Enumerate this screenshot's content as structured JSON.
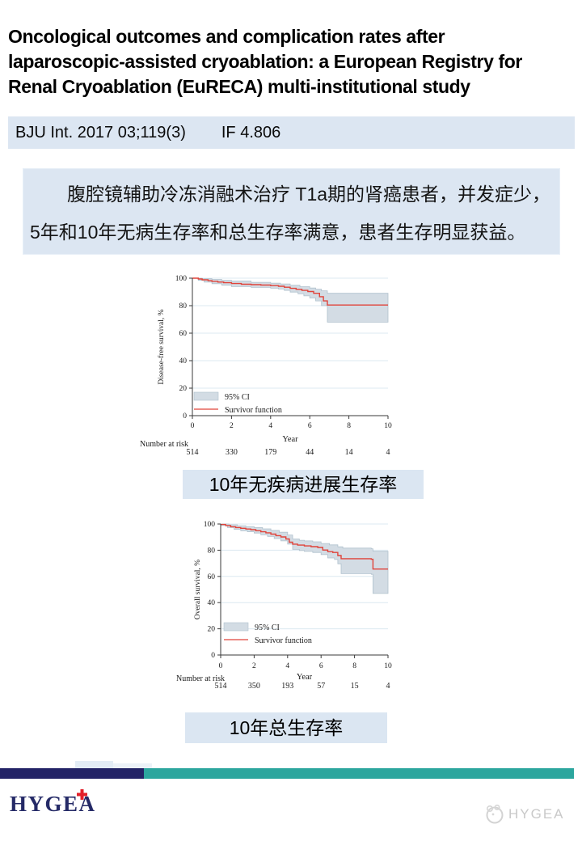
{
  "page": {
    "background": "#ffffff"
  },
  "title": {
    "lines": [
      "Oncological outcomes and complication rates after",
      "laparoscopic-assisted cryoablation: a European Registry for",
      "Renal Cryoablation (EuRECA) multi-institutional study"
    ]
  },
  "citation": {
    "text": "BJU Int. 2017 03;119(3)",
    "impact_factor": "IF 4.806",
    "bg": "#dce6f2"
  },
  "summary": {
    "lines": [
      "腹腔镜辅助冷冻消融术治疗 T1a期的肾癌患者，并发症少，",
      "5年和10年无病生存率和总生存率满意，患者生存明显获益。"
    ],
    "bg": "#dce6f2"
  },
  "chart_style": {
    "survivor_line": "#e0433a",
    "ci_fill": "#d3dce4",
    "ci_edge": "#b0c1cd",
    "grid": "#dce8f1",
    "axis": "#3a3a3a",
    "text": "#1a1a1a"
  },
  "chart_data": [
    {
      "type": "line",
      "name": "km-chart-disease-free-survival",
      "caption": "10年无疾病进展生存率",
      "ylabel": "Disease-free survival, %",
      "xlabel": "Year",
      "xlim": [
        0,
        10
      ],
      "ylim": [
        0,
        100
      ],
      "xticks": [
        0,
        2,
        4,
        6,
        8,
        10
      ],
      "yticks": [
        0,
        20,
        40,
        60,
        80,
        100
      ],
      "legend": [
        "95% CI",
        "Survivor function"
      ],
      "risk_label": "Number at risk",
      "risk_numbers": [
        514,
        330,
        179,
        44,
        14,
        4
      ],
      "survivor": [
        [
          0,
          100
        ],
        [
          0.3,
          99.4
        ],
        [
          0.5,
          98.8
        ],
        [
          0.8,
          98.2
        ],
        [
          1,
          97.7
        ],
        [
          1.3,
          97.2
        ],
        [
          1.6,
          96.7
        ],
        [
          2,
          96.1
        ],
        [
          2.5,
          95.6
        ],
        [
          3,
          95.3
        ],
        [
          3.5,
          95
        ],
        [
          4,
          94.6
        ],
        [
          4.4,
          94.1
        ],
        [
          4.7,
          93.4
        ],
        [
          5,
          92.6
        ],
        [
          5.3,
          91.9
        ],
        [
          5.6,
          91.1
        ],
        [
          5.9,
          90.3
        ],
        [
          6.2,
          89
        ],
        [
          6.5,
          86.5
        ],
        [
          6.7,
          83.5
        ],
        [
          6.9,
          80.5
        ],
        [
          10,
          80.5
        ]
      ],
      "ci_upper": [
        [
          0,
          100
        ],
        [
          0.5,
          99.6
        ],
        [
          1,
          99.1
        ],
        [
          1.5,
          98.4
        ],
        [
          2,
          97.8
        ],
        [
          3,
          97
        ],
        [
          4,
          96.4
        ],
        [
          4.5,
          95.8
        ],
        [
          5,
          94.8
        ],
        [
          5.5,
          93.8
        ],
        [
          6,
          92.8
        ],
        [
          6.3,
          92
        ],
        [
          6.6,
          90.8
        ],
        [
          6.9,
          89
        ],
        [
          10,
          89
        ]
      ],
      "ci_lower": [
        [
          0,
          100
        ],
        [
          0.3,
          98.4
        ],
        [
          0.6,
          97.2
        ],
        [
          1,
          96
        ],
        [
          1.5,
          94.9
        ],
        [
          2,
          93.9
        ],
        [
          3,
          93.3
        ],
        [
          4,
          92.7
        ],
        [
          4.4,
          92.1
        ],
        [
          4.7,
          91.1
        ],
        [
          5,
          89.9
        ],
        [
          5.4,
          88.6
        ],
        [
          5.7,
          87.1
        ],
        [
          6,
          85.6
        ],
        [
          6.3,
          83.5
        ],
        [
          6.6,
          80
        ],
        [
          6.9,
          68
        ],
        [
          10,
          68
        ]
      ]
    },
    {
      "type": "line",
      "name": "km-chart-overall-survival",
      "caption": "10年总生存率",
      "ylabel": "Overall survival, %",
      "xlabel": "Year",
      "xlim": [
        0,
        10
      ],
      "ylim": [
        0,
        100
      ],
      "xticks": [
        0,
        2,
        4,
        6,
        8,
        10
      ],
      "yticks": [
        0,
        20,
        40,
        60,
        80,
        100
      ],
      "legend": [
        "95% CI",
        "Survivor function"
      ],
      "risk_label": "Number at risk",
      "risk_numbers": [
        514,
        350,
        193,
        57,
        15,
        4
      ],
      "survivor": [
        [
          0,
          99.6
        ],
        [
          0.3,
          98.8
        ],
        [
          0.6,
          97.9
        ],
        [
          0.9,
          97.3
        ],
        [
          1.2,
          96.7
        ],
        [
          1.5,
          96.2
        ],
        [
          1.8,
          95.7
        ],
        [
          2.1,
          94.9
        ],
        [
          2.4,
          94.1
        ],
        [
          2.7,
          93.3
        ],
        [
          3,
          92.3
        ],
        [
          3.3,
          91.1
        ],
        [
          3.6,
          90.1
        ],
        [
          3.9,
          88.6
        ],
        [
          4.1,
          86.1
        ],
        [
          4.3,
          84.6
        ],
        [
          4.6,
          83.9
        ],
        [
          5,
          83.3
        ],
        [
          5.4,
          82.7
        ],
        [
          5.8,
          82.1
        ],
        [
          6.1,
          80.1
        ],
        [
          6.4,
          78.9
        ],
        [
          6.7,
          78.3
        ],
        [
          7,
          75.9
        ],
        [
          7.2,
          73.5
        ],
        [
          9,
          73.1
        ],
        [
          9.1,
          65.6
        ],
        [
          10,
          65.6
        ]
      ],
      "ci_upper": [
        [
          0,
          100
        ],
        [
          0.5,
          99.4
        ],
        [
          1,
          98.7
        ],
        [
          1.5,
          98.1
        ],
        [
          2,
          97.3
        ],
        [
          2.5,
          96.3
        ],
        [
          3,
          95.1
        ],
        [
          3.5,
          93.7
        ],
        [
          4,
          91.6
        ],
        [
          4.3,
          88.6
        ],
        [
          4.7,
          87.6
        ],
        [
          5,
          87.1
        ],
        [
          5.5,
          86.4
        ],
        [
          6,
          85.1
        ],
        [
          6.5,
          84.1
        ],
        [
          7,
          82.6
        ],
        [
          7.3,
          81.6
        ],
        [
          9,
          81.1
        ],
        [
          9.1,
          79.2
        ],
        [
          10,
          79.2
        ]
      ],
      "ci_lower": [
        [
          0,
          98.9
        ],
        [
          0.4,
          97.3
        ],
        [
          0.8,
          95.9
        ],
        [
          1.2,
          94.9
        ],
        [
          1.6,
          94.1
        ],
        [
          2,
          93.1
        ],
        [
          2.4,
          91.7
        ],
        [
          2.8,
          90.5
        ],
        [
          3.2,
          88.9
        ],
        [
          3.6,
          87.1
        ],
        [
          4,
          84.6
        ],
        [
          4.3,
          80.6
        ],
        [
          4.7,
          79.7
        ],
        [
          5,
          79.1
        ],
        [
          5.5,
          78.3
        ],
        [
          6,
          76.6
        ],
        [
          6.4,
          74.1
        ],
        [
          6.8,
          72.9
        ],
        [
          7,
          69.6
        ],
        [
          7.2,
          62.1
        ],
        [
          9,
          61.6
        ],
        [
          9.1,
          47
        ],
        [
          10,
          47
        ]
      ]
    }
  ],
  "footer": {
    "stripe_left_color": "#232366",
    "stripe_right_color": "#2ca69e",
    "logo_text": "HYGEA",
    "logo_color": "#252a67",
    "cross_color": "#e3202a",
    "watermark_text": "HYGEA"
  }
}
